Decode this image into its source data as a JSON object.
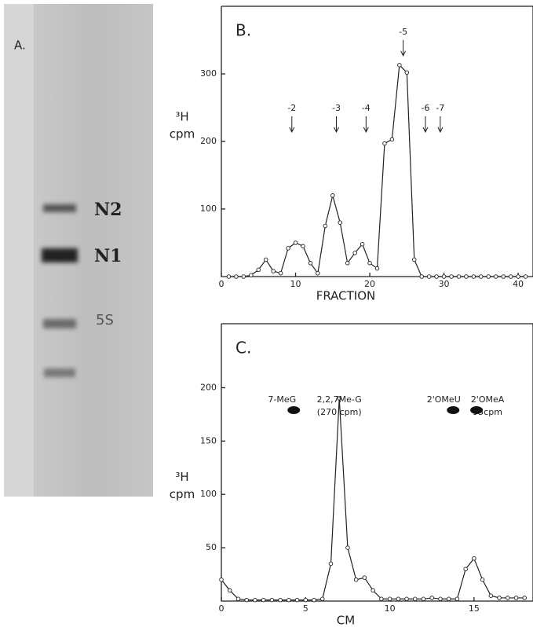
{
  "gel": {
    "label": "A.",
    "band_labels": [
      "N2",
      "N1",
      "5S"
    ]
  },
  "chart_data": [
    {
      "type": "line",
      "title": "B.",
      "xlabel": "FRACTION",
      "ylabel": [
        "³H",
        "cpm"
      ],
      "x": [
        1,
        2,
        3,
        4,
        5,
        6,
        7,
        8,
        9,
        10,
        11,
        12,
        13,
        14,
        15,
        16,
        17,
        18,
        19,
        20,
        21,
        22,
        23,
        24,
        25,
        26,
        27,
        28,
        29,
        30,
        31,
        32,
        33,
        34,
        35,
        36,
        37,
        38,
        39,
        40,
        41
      ],
      "series": [
        {
          "color": "#222222",
          "values": [
            0,
            0,
            0,
            2,
            10,
            25,
            8,
            5,
            42,
            50,
            45,
            20,
            5,
            75,
            120,
            80,
            20,
            35,
            48,
            20,
            12,
            197,
            203,
            313,
            302,
            25,
            0,
            0,
            0,
            0,
            0,
            0,
            0,
            0,
            0,
            0,
            0,
            0,
            0,
            0,
            0
          ]
        }
      ],
      "xlim": [
        0,
        42
      ],
      "ylim": [
        0,
        400
      ],
      "xticks": [
        0,
        10,
        20,
        30,
        40
      ],
      "yticks": [
        100,
        200,
        300
      ],
      "annotations": [
        {
          "text": "-2",
          "x": 9.5
        },
        {
          "text": "-3",
          "x": 15.5
        },
        {
          "text": "-4",
          "x": 19.5
        },
        {
          "text": "-5",
          "x": 24.5
        },
        {
          "text": "-6",
          "x": 27.5
        },
        {
          "text": "-7",
          "x": 29.5
        }
      ]
    },
    {
      "type": "line",
      "title": "C.",
      "xlabel": "CM",
      "ylabel": [
        "³H",
        "cpm"
      ],
      "x": [
        0,
        0.5,
        1,
        1.5,
        2,
        2.5,
        3,
        3.5,
        4,
        4.5,
        5,
        5.5,
        6,
        6.5,
        7,
        7.5,
        8,
        8.5,
        9,
        9.5,
        10,
        10.5,
        11,
        11.5,
        12,
        12.5,
        13,
        13.5,
        14,
        14.5,
        15,
        15.5,
        16,
        16.5,
        17,
        17.5,
        18
      ],
      "series": [
        {
          "color": "#222222",
          "values": [
            20,
            10,
            2,
            1,
            1,
            1,
            1,
            1,
            1,
            1,
            1,
            1,
            2,
            35,
            190,
            50,
            20,
            22,
            10,
            2,
            2,
            2,
            2,
            2,
            2,
            3,
            2,
            2,
            2,
            30,
            40,
            20,
            5,
            3,
            3,
            3,
            3
          ]
        }
      ],
      "xlim": [
        0,
        18.5
      ],
      "ylim": [
        0,
        260
      ],
      "xticks": [
        0,
        5,
        10,
        15
      ],
      "yticks": [
        50,
        100,
        150,
        200
      ],
      "annotations": [
        {
          "x": 3.6,
          "lines": [
            "7-MeG"
          ],
          "spot": true
        },
        {
          "x": 7,
          "lines": [
            "2,2,7Me-G",
            "(270 cpm)"
          ],
          "spot": false
        },
        {
          "x": 13.2,
          "lines": [
            "2'OMeU"
          ],
          "spot": true
        },
        {
          "x": 15.8,
          "lines": [
            "2'OMeA",
            "95cpm"
          ],
          "spot": true
        }
      ]
    }
  ]
}
